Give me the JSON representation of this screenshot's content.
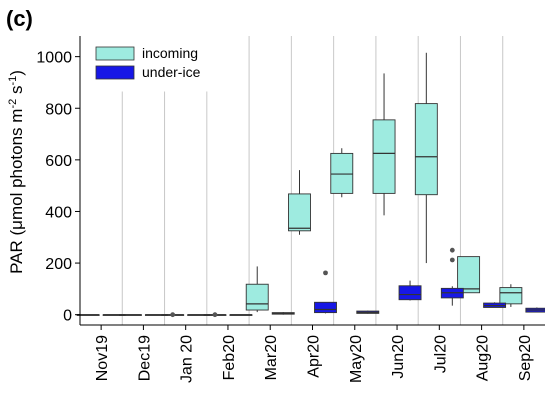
{
  "chart_data": {
    "panel_label": "(c)",
    "type": "boxplot",
    "ylabel_prefix": "PAR (μmol photons m",
    "ylabel_exp1": "-2",
    "ylabel_mid": " s",
    "ylabel_exp2": "-1",
    "ylabel_suffix": ")",
    "xlabel": "",
    "ylim": [
      -40,
      1080
    ],
    "yticks": [
      0,
      200,
      400,
      600,
      800,
      1000
    ],
    "categories": [
      "Nov19",
      "Dec19",
      "Jan 20",
      "Feb20",
      "Mar20",
      "Apr20",
      "May20",
      "Jun20",
      "Jul20",
      "Aug20",
      "Sep20"
    ],
    "legend_position": "top-left",
    "grid": "vertical separators between months",
    "colors": {
      "incoming": "#9eebe0",
      "under_ice": "#1717e6",
      "separator": "#c8c8c8",
      "outlier": "#555555"
    },
    "series": [
      {
        "name": "incoming",
        "boxes": [
          {
            "category": "Nov19",
            "whisker_low": 0,
            "q1": 0,
            "median": 0,
            "q3": 0,
            "whisker_high": 0,
            "outliers": []
          },
          {
            "category": "Dec19",
            "whisker_low": 0,
            "q1": 0,
            "median": 0,
            "q3": 0,
            "whisker_high": 0,
            "outliers": []
          },
          {
            "category": "Jan 20",
            "whisker_low": 0,
            "q1": 0,
            "median": 0,
            "q3": 0,
            "whisker_high": 0,
            "outliers": [
              0
            ]
          },
          {
            "category": "Feb20",
            "whisker_low": 0,
            "q1": 0,
            "median": 0,
            "q3": 0,
            "whisker_high": 0,
            "outliers": [
              0
            ]
          },
          {
            "category": "Mar20",
            "whisker_low": 10,
            "q1": 18,
            "median": 42,
            "q3": 118,
            "whisker_high": 187,
            "outliers": []
          },
          {
            "category": "Apr20",
            "whisker_low": 310,
            "q1": 325,
            "median": 335,
            "q3": 468,
            "whisker_high": 560,
            "outliers": []
          },
          {
            "category": "May20",
            "whisker_low": 455,
            "q1": 470,
            "median": 545,
            "q3": 625,
            "whisker_high": 645,
            "outliers": []
          },
          {
            "category": "Jun20",
            "whisker_low": 385,
            "q1": 470,
            "median": 625,
            "q3": 755,
            "whisker_high": 935,
            "outliers": []
          },
          {
            "category": "Jul20",
            "whisker_low": 200,
            "q1": 465,
            "median": 612,
            "q3": 818,
            "whisker_high": 1015,
            "outliers": []
          },
          {
            "category": "Aug20",
            "whisker_low": 85,
            "q1": 85,
            "median": 100,
            "q3": 225,
            "whisker_high": 225,
            "outliers": []
          },
          {
            "category": "Sep20",
            "whisker_low": 30,
            "q1": 42,
            "median": 85,
            "q3": 105,
            "whisker_high": 118,
            "outliers": []
          }
        ]
      },
      {
        "name": "under-ice",
        "boxes": [
          {
            "category": "Nov19",
            "whisker_low": 0,
            "q1": 0,
            "median": 0,
            "q3": 0,
            "whisker_high": 0,
            "outliers": []
          },
          {
            "category": "Dec19",
            "whisker_low": 0,
            "q1": 0,
            "median": 0,
            "q3": 0,
            "whisker_high": 0,
            "outliers": []
          },
          {
            "category": "Jan 20",
            "whisker_low": 0,
            "q1": 0,
            "median": 0,
            "q3": 0,
            "whisker_high": 0,
            "outliers": []
          },
          {
            "category": "Feb20",
            "whisker_low": 0,
            "q1": 0,
            "median": 0,
            "q3": 0,
            "whisker_high": 0,
            "outliers": []
          },
          {
            "category": "Mar20",
            "whisker_low": 0,
            "q1": 2,
            "median": 4,
            "q3": 8,
            "whisker_high": 10,
            "outliers": []
          },
          {
            "category": "Apr20",
            "whisker_low": 5,
            "q1": 8,
            "median": 20,
            "q3": 48,
            "whisker_high": 48,
            "outliers": [
              162
            ]
          },
          {
            "category": "May20",
            "whisker_low": 4,
            "q1": 5,
            "median": 9,
            "q3": 14,
            "whisker_high": 16,
            "outliers": []
          },
          {
            "category": "Jun20",
            "whisker_low": 55,
            "q1": 58,
            "median": 78,
            "q3": 112,
            "whisker_high": 132,
            "outliers": []
          },
          {
            "category": "Jul20",
            "whisker_low": 35,
            "q1": 65,
            "median": 85,
            "q3": 102,
            "whisker_high": 110,
            "outliers": [
              212,
              250
            ]
          },
          {
            "category": "Aug20",
            "whisker_low": 28,
            "q1": 28,
            "median": 35,
            "q3": 45,
            "whisker_high": 48,
            "outliers": []
          },
          {
            "category": "Sep20",
            "whisker_low": 10,
            "q1": 10,
            "median": 18,
            "q3": 25,
            "whisker_high": 28,
            "outliers": []
          }
        ]
      }
    ]
  }
}
